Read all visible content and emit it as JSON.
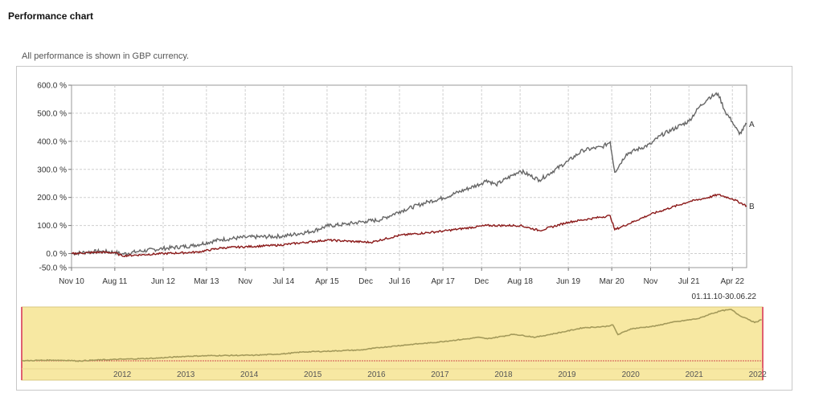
{
  "page": {
    "title": "Performance chart",
    "subtitle": "All performance is shown in GBP currency."
  },
  "chart_data": {
    "type": "line",
    "xlabel": "",
    "ylabel": "",
    "ylim": [
      -50,
      600
    ],
    "y_ticks": [
      {
        "value": 600,
        "label": "600.0 %"
      },
      {
        "value": 500,
        "label": "500.0 %"
      },
      {
        "value": 400,
        "label": "400.0 %"
      },
      {
        "value": 300,
        "label": "300.0 %"
      },
      {
        "value": 200,
        "label": "200.0 %"
      },
      {
        "value": 100,
        "label": "100.0 %"
      },
      {
        "value": 0,
        "label": "0.0 %"
      },
      {
        "value": -50,
        "label": "-50.0 %"
      }
    ],
    "x_range": [
      "2010-11-01",
      "2022-06-30"
    ],
    "x_ticks": [
      {
        "date": "2010-11-01",
        "label": "Nov 10"
      },
      {
        "date": "2011-08-01",
        "label": "Aug 11"
      },
      {
        "date": "2012-06-01",
        "label": "Jun 12"
      },
      {
        "date": "2013-03-01",
        "label": "Mar 13"
      },
      {
        "date": "2013-11-01",
        "label": "Nov"
      },
      {
        "date": "2014-07-01",
        "label": "Jul 14"
      },
      {
        "date": "2015-04-01",
        "label": "Apr 15"
      },
      {
        "date": "2015-12-01",
        "label": "Dec"
      },
      {
        "date": "2016-07-01",
        "label": "Jul 16"
      },
      {
        "date": "2017-04-01",
        "label": "Apr 17"
      },
      {
        "date": "2017-12-01",
        "label": "Dec"
      },
      {
        "date": "2018-08-01",
        "label": "Aug 18"
      },
      {
        "date": "2019-06-01",
        "label": "Jun 19"
      },
      {
        "date": "2020-03-01",
        "label": "Mar 20"
      },
      {
        "date": "2020-11-01",
        "label": "Nov"
      },
      {
        "date": "2021-07-01",
        "label": "Jul 21"
      },
      {
        "date": "2022-04-01",
        "label": "Apr 22"
      }
    ],
    "date_range_label": "01.11.10-30.06.22",
    "grid": true,
    "series": [
      {
        "name": "A",
        "color": "#666666",
        "points": [
          [
            "2010-11-01",
            0
          ],
          [
            "2011-02-01",
            5
          ],
          [
            "2011-05-01",
            8
          ],
          [
            "2011-08-01",
            5
          ],
          [
            "2011-09-15",
            -2
          ],
          [
            "2012-01-01",
            8
          ],
          [
            "2012-06-01",
            18
          ],
          [
            "2012-12-01",
            28
          ],
          [
            "2013-06-01",
            50
          ],
          [
            "2013-11-01",
            58
          ],
          [
            "2014-07-01",
            62
          ],
          [
            "2015-01-01",
            80
          ],
          [
            "2015-04-01",
            98
          ],
          [
            "2015-08-01",
            105
          ],
          [
            "2015-12-01",
            115
          ],
          [
            "2016-03-01",
            120
          ],
          [
            "2016-07-01",
            150
          ],
          [
            "2017-01-01",
            185
          ],
          [
            "2017-04-01",
            198
          ],
          [
            "2017-12-01",
            250
          ],
          [
            "2018-01-01",
            262
          ],
          [
            "2018-03-01",
            245
          ],
          [
            "2018-08-01",
            295
          ],
          [
            "2018-12-01",
            262
          ],
          [
            "2019-06-01",
            330
          ],
          [
            "2019-09-01",
            368
          ],
          [
            "2020-01-01",
            380
          ],
          [
            "2020-02-20",
            398
          ],
          [
            "2020-03-20",
            290
          ],
          [
            "2020-06-01",
            355
          ],
          [
            "2020-11-01",
            390
          ],
          [
            "2021-01-01",
            420
          ],
          [
            "2021-07-01",
            472
          ],
          [
            "2021-09-01",
            520
          ],
          [
            "2021-11-01",
            555
          ],
          [
            "2022-01-01",
            570
          ],
          [
            "2022-02-15",
            505
          ],
          [
            "2022-04-01",
            470
          ],
          [
            "2022-05-15",
            425
          ],
          [
            "2022-06-30",
            462
          ]
        ]
      },
      {
        "name": "B",
        "color": "#8b1a1a",
        "points": [
          [
            "2010-11-01",
            0
          ],
          [
            "2011-05-01",
            5
          ],
          [
            "2011-08-01",
            3
          ],
          [
            "2011-09-15",
            -8
          ],
          [
            "2012-06-01",
            0
          ],
          [
            "2013-01-01",
            5
          ],
          [
            "2013-06-01",
            20
          ],
          [
            "2014-06-01",
            30
          ],
          [
            "2015-04-01",
            48
          ],
          [
            "2016-01-01",
            40
          ],
          [
            "2016-07-01",
            65
          ],
          [
            "2017-04-01",
            80
          ],
          [
            "2018-01-01",
            100
          ],
          [
            "2018-08-01",
            100
          ],
          [
            "2018-12-01",
            82
          ],
          [
            "2019-06-01",
            112
          ],
          [
            "2020-02-20",
            135
          ],
          [
            "2020-03-20",
            85
          ],
          [
            "2020-11-01",
            140
          ],
          [
            "2021-07-01",
            185
          ],
          [
            "2021-11-01",
            200
          ],
          [
            "2022-01-01",
            210
          ],
          [
            "2022-04-01",
            195
          ],
          [
            "2022-06-30",
            170
          ]
        ]
      }
    ]
  },
  "navigator": {
    "year_labels": [
      "2012",
      "2013",
      "2014",
      "2015",
      "2016",
      "2017",
      "2018",
      "2019",
      "2020",
      "2021",
      "2022"
    ],
    "background": "#f7e8a2",
    "series_color": "#a49a5a"
  }
}
